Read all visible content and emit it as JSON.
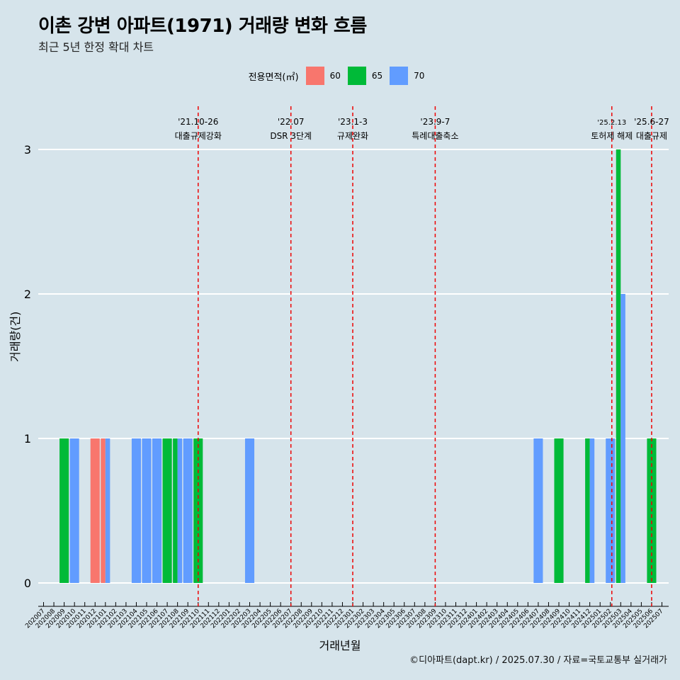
{
  "title": "이촌 강변 아파트(1971) 거래량 변화 흐름",
  "subtitle": "최근 5년 한정 확대 차트",
  "legend": {
    "title": "전용면적(㎡)",
    "items": [
      {
        "label": "60",
        "color": "#f8766d"
      },
      {
        "label": "65",
        "color": "#00ba38"
      },
      {
        "label": "70",
        "color": "#619cff"
      }
    ]
  },
  "caption": "©디아파트(dapt.kr) / 2025.07.30 / 자료=국토교통부 실거래가",
  "chart_data": {
    "type": "bar",
    "xlabel": "거래년월",
    "ylabel": "거래량(건)",
    "ylim": [
      0,
      3
    ],
    "yticks": [
      0,
      1,
      2,
      3
    ],
    "grid": true,
    "legend_position": "top",
    "categories": [
      "202007",
      "202008",
      "202009",
      "202010",
      "202011",
      "202012",
      "202101",
      "202102",
      "202103",
      "202104",
      "202105",
      "202106",
      "202107",
      "202108",
      "202109",
      "202110",
      "202111",
      "202112",
      "202201",
      "202202",
      "202203",
      "202204",
      "202205",
      "202206",
      "202207",
      "202208",
      "202209",
      "202210",
      "202211",
      "202212",
      "202301",
      "202302",
      "202303",
      "202304",
      "202305",
      "202306",
      "202307",
      "202308",
      "202309",
      "202310",
      "202311",
      "202312",
      "202401",
      "202402",
      "202403",
      "202404",
      "202405",
      "202406",
      "202407",
      "202408",
      "202409",
      "202410",
      "202411",
      "202412",
      "202501",
      "202502",
      "202503",
      "202504",
      "202505",
      "202506",
      "202507"
    ],
    "series": [
      {
        "name": "60",
        "color": "#f8766d",
        "values": {
          "202012": 1,
          "202101": 1
        }
      },
      {
        "name": "65",
        "color": "#00ba38",
        "values": {
          "202009": 1,
          "202107": 1,
          "202108": 1,
          "202110": 1,
          "202409": 1,
          "202412": 1,
          "202503": 3,
          "202506": 1
        }
      },
      {
        "name": "70",
        "color": "#619cff",
        "values": {
          "202010": 1,
          "202101": 1,
          "202104": 1,
          "202105": 1,
          "202106": 1,
          "202108": 1,
          "202109": 1,
          "202203": 1,
          "202407": 1,
          "202412": 1,
          "202502": 1,
          "202503": 2
        }
      }
    ],
    "annotations": [
      {
        "month": "202110",
        "date": "'21.10-26",
        "text": "대출규제강화"
      },
      {
        "month": "202207",
        "date": "'22.07",
        "text": "DSR 3단계"
      },
      {
        "month": "202301",
        "date": "'23.1-3",
        "text": "규제완화"
      },
      {
        "month": "202309",
        "date": "'23.9-7",
        "text": "특례대출축소"
      },
      {
        "month": "202502",
        "date": "'25.2.13",
        "text": "토허제 해제"
      },
      {
        "month": "202506",
        "date": "'25.6-27",
        "text": "대출규제"
      }
    ]
  }
}
